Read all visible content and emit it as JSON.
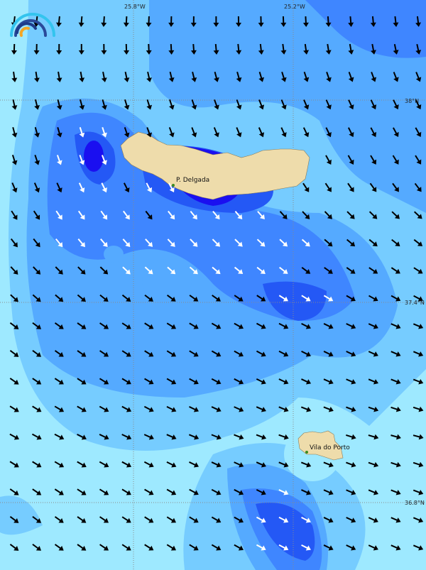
{
  "map": {
    "colors": {
      "water_0": "#9ee9ff",
      "water_1": "#76ccff",
      "water_2": "#55aaff",
      "water_3": "#3f86ff",
      "water_4": "#2458f5",
      "water_5": "#1a0ff0",
      "land": "#eedcab",
      "grid": "#8a8a8a"
    },
    "longitude_labels": [
      "25.8°W",
      "25.2°W"
    ],
    "latitude_labels": [
      "38°N",
      "37.4°N",
      "36.8°N"
    ],
    "places": [
      {
        "name": "P. Delgada"
      },
      {
        "name": "Vila do Porto"
      }
    ],
    "logo_icon": "rainbow-arcs-logo",
    "arrow_icon": "wind-arrow-icon",
    "wind_row_directions_deg": [
      180,
      175,
      165,
      160,
      158,
      155,
      150,
      140,
      135,
      130,
      125,
      120,
      120,
      118,
      115,
      112,
      115,
      118,
      120,
      120
    ]
  }
}
